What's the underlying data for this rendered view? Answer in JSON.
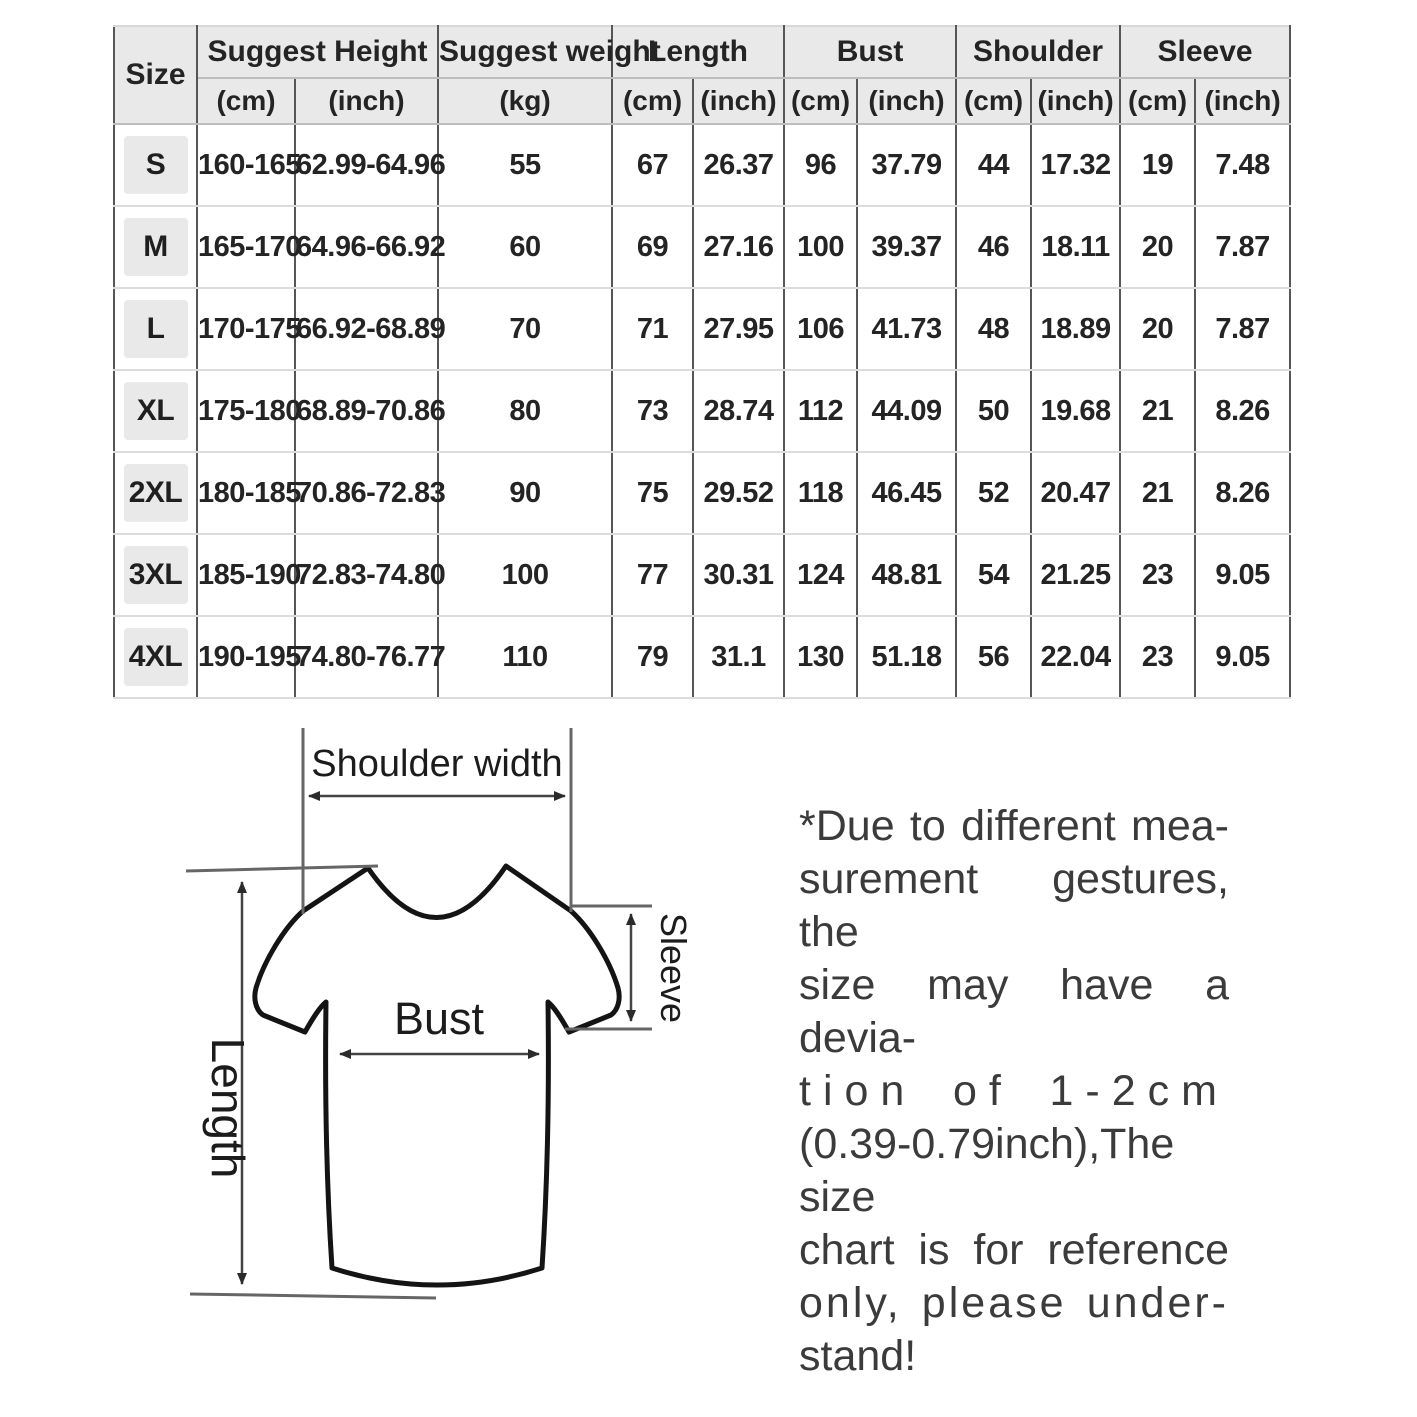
{
  "colors": {
    "inch_red": "#b23b45",
    "table_text": "#242424",
    "header_bg": "#e9e9e9"
  },
  "size_table": {
    "header": {
      "size": "Size",
      "suggest_height": "Suggest Height",
      "suggest_weight": "Suggest weight",
      "length": "Length",
      "bust": "Bust",
      "shoulder": "Shoulder",
      "sleeve": "Sleeve"
    },
    "units": [
      "(cm)",
      "(inch)",
      "(kg)",
      "(cm)",
      "(inch)",
      "(cm)",
      "(inch)",
      "(cm)",
      "(inch)",
      "(cm)",
      "(inch)"
    ],
    "rows": [
      [
        "S",
        "160-165",
        "62.99-64.96",
        "55",
        "67",
        "26.37",
        "96",
        "37.79",
        "44",
        "17.32",
        "19",
        "7.48"
      ],
      [
        "M",
        "165-170",
        "64.96-66.92",
        "60",
        "69",
        "27.16",
        "100",
        "39.37",
        "46",
        "18.11",
        "20",
        "7.87"
      ],
      [
        "L",
        "170-175",
        "66.92-68.89",
        "70",
        "71",
        "27.95",
        "106",
        "41.73",
        "48",
        "18.89",
        "20",
        "7.87"
      ],
      [
        "XL",
        "175-180",
        "68.89-70.86",
        "80",
        "73",
        "28.74",
        "112",
        "44.09",
        "50",
        "19.68",
        "21",
        "8.26"
      ],
      [
        "2XL",
        "180-185",
        "70.86-72.83",
        "90",
        "75",
        "29.52",
        "118",
        "46.45",
        "52",
        "20.47",
        "21",
        "8.26"
      ],
      [
        "3XL",
        "185-190",
        "72.83-74.80",
        "100",
        "77",
        "30.31",
        "124",
        "48.81",
        "54",
        "21.25",
        "23",
        "9.05"
      ],
      [
        "4XL",
        "190-195",
        "74.80-76.77",
        "110",
        "79",
        "31.1",
        "130",
        "51.18",
        "56",
        "22.04",
        "23",
        "9.05"
      ]
    ]
  },
  "diagram": {
    "labels": {
      "shoulder_width": "Shoulder width",
      "sleeve": "Sleeve",
      "bust": "Bust",
      "length": "Length"
    }
  },
  "disclaimer": {
    "lines": [
      "*Due to different mea-",
      "surement gestures, the",
      "size may have a devia-",
      "tion of 1-2cm",
      "(0.39-0.79inch),The size",
      "chart is for reference",
      "only, please under-",
      "stand!"
    ]
  }
}
